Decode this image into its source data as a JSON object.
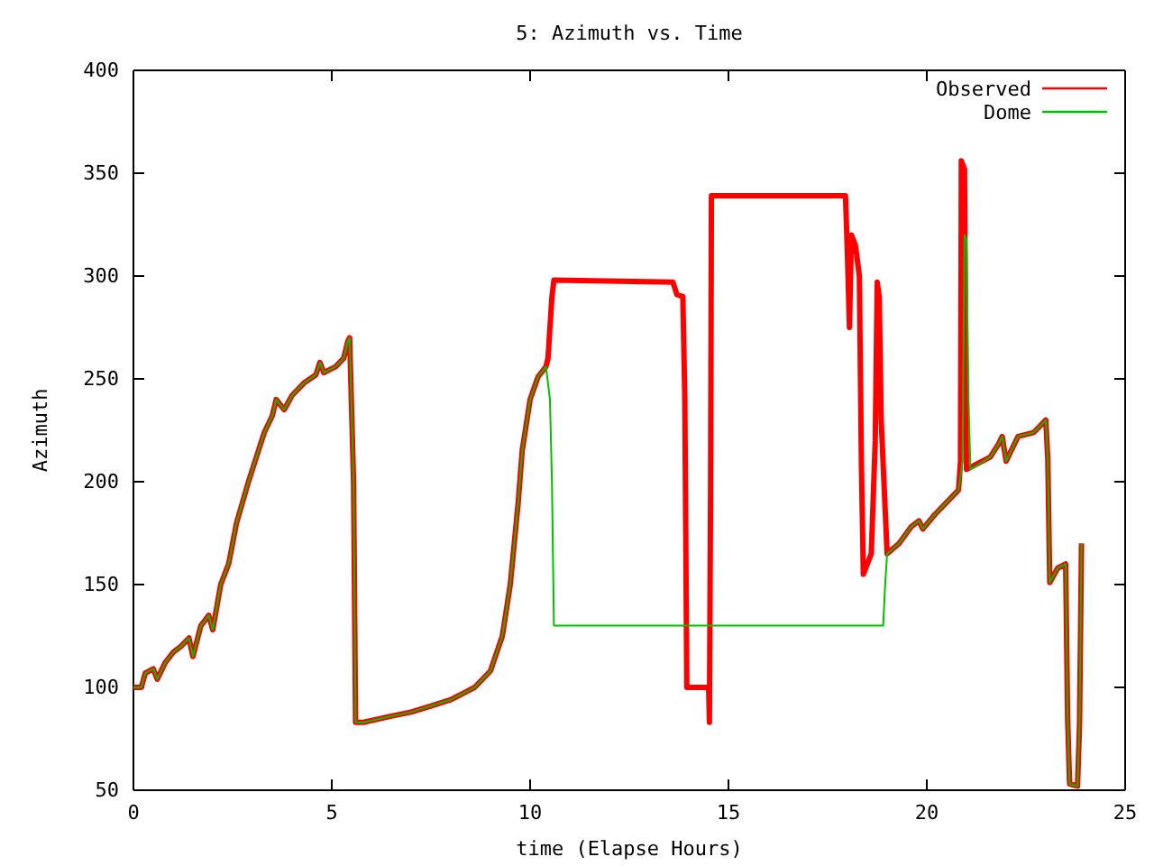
{
  "chart_data": {
    "type": "line",
    "title": "5: Azimuth vs. Time",
    "xlabel": "time (Elapse Hours)",
    "ylabel": "Azimuth",
    "xlim": [
      0,
      25
    ],
    "xticks": [
      0,
      5,
      10,
      15,
      20,
      25
    ],
    "ylim": [
      50,
      400
    ],
    "yticks": [
      50,
      100,
      150,
      200,
      250,
      300,
      350,
      400
    ],
    "grid": false,
    "legend": "top right",
    "marker": "none",
    "line_style": "solid",
    "series": [
      {
        "name": "Observed",
        "color": "#ff0000",
        "x": [
          0,
          0.2,
          0.3,
          0.5,
          0.6,
          0.8,
          1.0,
          1.2,
          1.4,
          1.5,
          1.7,
          1.9,
          2.0,
          2.2,
          2.4,
          2.6,
          2.9,
          3.1,
          3.3,
          3.5,
          3.6,
          3.8,
          4.0,
          4.3,
          4.6,
          4.7,
          4.8,
          5.1,
          5.3,
          5.4,
          5.45,
          5.55,
          5.6,
          5.8,
          6.5,
          7.0,
          7.5,
          8.0,
          8.3,
          8.6,
          9.0,
          9.3,
          9.5,
          9.7,
          9.8,
          10.0,
          10.2,
          10.4,
          10.45,
          10.5,
          10.55,
          10.6,
          13.6,
          13.7,
          13.85,
          13.9,
          13.95,
          14.5,
          14.52,
          14.55,
          14.57,
          17.95,
          18.0,
          18.05,
          18.1,
          18.2,
          18.3,
          18.35,
          18.4,
          18.5,
          18.6,
          18.7,
          18.75,
          18.8,
          18.85,
          19.0,
          19.3,
          19.6,
          19.8,
          19.9,
          20.2,
          20.5,
          20.8,
          20.85,
          20.87,
          20.95,
          21.0,
          21.6,
          21.8,
          21.9,
          22.0,
          22.3,
          22.7,
          23.0,
          23.05,
          23.1,
          23.3,
          23.5,
          23.55,
          23.6,
          23.8,
          23.85,
          23.9
        ],
        "values": [
          100,
          100,
          107,
          109,
          104,
          112,
          117,
          120,
          124,
          115,
          130,
          135,
          128,
          150,
          160,
          180,
          200,
          212,
          224,
          232,
          240,
          235,
          242,
          248,
          252,
          258,
          253,
          256,
          260,
          268,
          270,
          200,
          83,
          83,
          86,
          88,
          91,
          94,
          97,
          100,
          108,
          125,
          150,
          190,
          215,
          240,
          251,
          256,
          260,
          275,
          290,
          298,
          297,
          291,
          290,
          240,
          100,
          100,
          83,
          200,
          339,
          339,
          310,
          275,
          320,
          315,
          300,
          210,
          155,
          160,
          165,
          220,
          297,
          290,
          230,
          165,
          170,
          178,
          181,
          177,
          184,
          190,
          196,
          210,
          356,
          352,
          206,
          212,
          218,
          222,
          210,
          222,
          224,
          230,
          211,
          151,
          158,
          160,
          85,
          53,
          52,
          82,
          170
        ]
      },
      {
        "name": "Dome",
        "color": "#00c000",
        "x": [
          0,
          0.2,
          0.3,
          0.5,
          0.6,
          0.8,
          1.0,
          1.2,
          1.4,
          1.5,
          1.7,
          1.9,
          2.0,
          2.2,
          2.4,
          2.6,
          2.9,
          3.1,
          3.3,
          3.5,
          3.6,
          3.8,
          4.0,
          4.3,
          4.6,
          4.7,
          4.8,
          5.1,
          5.3,
          5.4,
          5.45,
          5.55,
          5.6,
          5.8,
          6.5,
          7.0,
          7.5,
          8.0,
          8.3,
          8.6,
          9.0,
          9.3,
          9.5,
          9.7,
          9.8,
          10.0,
          10.2,
          10.4,
          10.5,
          10.55,
          10.6,
          18.9,
          18.95,
          19.0,
          19.3,
          19.6,
          19.8,
          19.9,
          20.2,
          20.5,
          20.8,
          20.9,
          20.95,
          21.0,
          21.05,
          21.1,
          21.6,
          21.8,
          21.9,
          22.0,
          22.3,
          22.7,
          23.0,
          23.05,
          23.1,
          23.3,
          23.5,
          23.55,
          23.6,
          23.8,
          23.85,
          23.9
        ],
        "values": [
          100,
          100,
          107,
          109,
          104,
          112,
          117,
          120,
          124,
          115,
          130,
          135,
          128,
          150,
          160,
          180,
          200,
          212,
          224,
          232,
          240,
          235,
          242,
          248,
          252,
          258,
          253,
          256,
          260,
          268,
          270,
          200,
          83,
          83,
          86,
          88,
          91,
          94,
          97,
          100,
          108,
          125,
          150,
          190,
          215,
          240,
          251,
          256,
          240,
          200,
          130,
          130,
          150,
          165,
          170,
          178,
          181,
          177,
          184,
          190,
          196,
          210,
          320,
          318,
          241,
          206,
          212,
          218,
          222,
          210,
          222,
          224,
          230,
          211,
          151,
          158,
          160,
          85,
          53,
          52,
          82,
          170
        ]
      }
    ]
  }
}
